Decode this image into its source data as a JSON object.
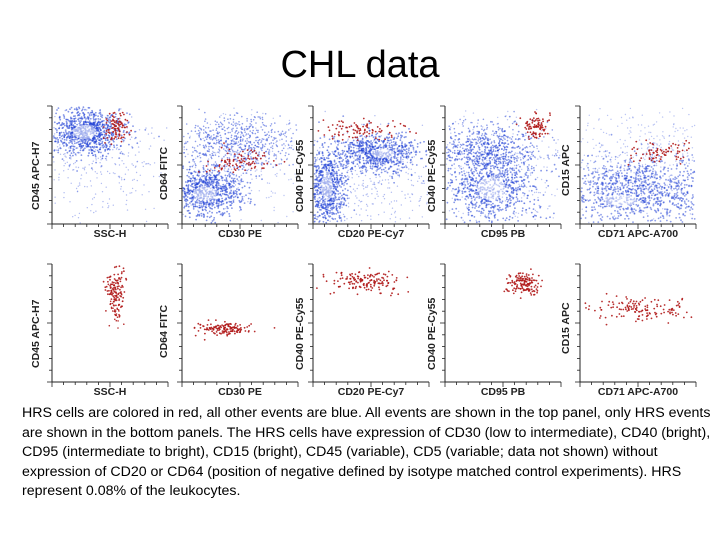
{
  "title": "CHL data",
  "colors": {
    "all_events": "#1f3fd6",
    "hrs_events": "#b01818",
    "axis": "#222222"
  },
  "top_panel": {
    "plots": [
      {
        "ylabel": "CD45  APC-H7",
        "xlabel": "SSC-H"
      },
      {
        "ylabel": "CD64  FITC",
        "xlabel": "CD30  PE"
      },
      {
        "ylabel": "CD40  PE-Cy55",
        "xlabel": "CD20  PE-Cy7"
      },
      {
        "ylabel": "CD40  PE-Cy55",
        "xlabel": "CD95  PB"
      },
      {
        "ylabel": "CD15  APC",
        "xlabel": "CD71  APC-A700"
      }
    ]
  },
  "bottom_panel": {
    "plots": [
      {
        "ylabel": "CD45  APC-H7",
        "xlabel": "SSC-H"
      },
      {
        "ylabel": "CD64  FITC",
        "xlabel": "CD30  PE"
      },
      {
        "ylabel": "CD40  PE-Cy55",
        "xlabel": "CD20  PE-Cy7"
      },
      {
        "ylabel": "CD40  PE-Cy55",
        "xlabel": "CD95  PB"
      },
      {
        "ylabel": "CD15  APC",
        "xlabel": "CD71  APC-A700"
      }
    ]
  },
  "caption": "HRS cells are colored in red, all other events are blue. All events are shown in the top panel, only HRS events are shown in the bottom panels. The HRS cells have expression of CD30 (low to intermediate), CD40 (bright), CD95 (intermediate to bright), CD15 (bright), CD45 (variable), CD5 (variable; data not shown) without expression of CD20 or CD64 (position of negative defined by isotype matched control experiments). HRS represent 0.08% of the leukocytes."
}
